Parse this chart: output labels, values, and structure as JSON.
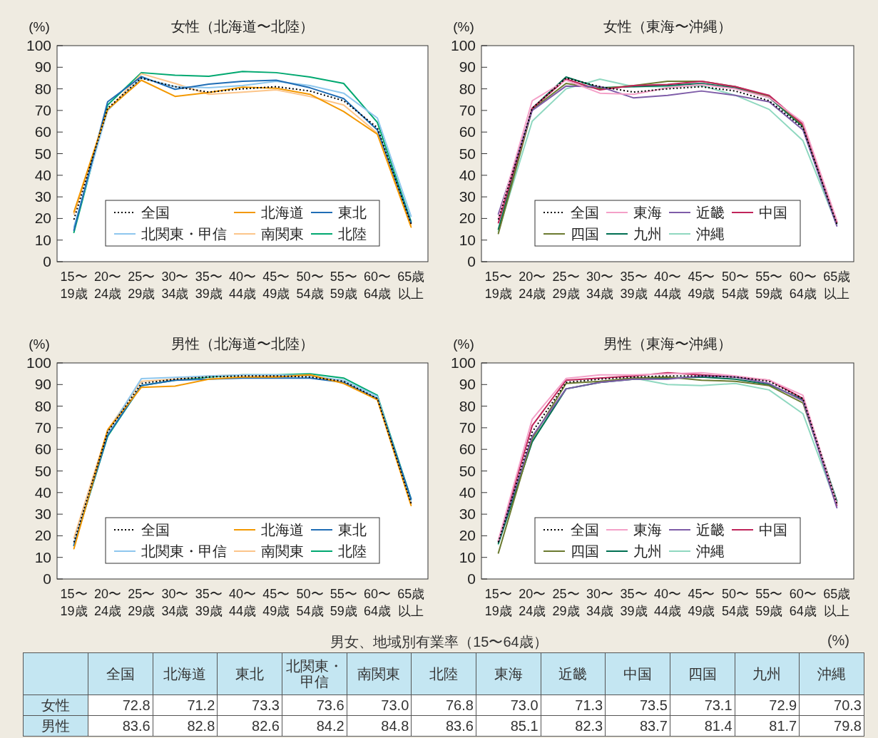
{
  "chart_data": [
    {
      "type": "line",
      "title": "女性（北海道〜北陸）",
      "ylabel": "(%)",
      "categories": [
        "15〜19歳",
        "20〜24歳",
        "25〜29歳",
        "30〜34歳",
        "35〜39歳",
        "40〜44歳",
        "45〜49歳",
        "50〜54歳",
        "55〜59歳",
        "60〜64歳",
        "65歳以上"
      ],
      "ylim": [
        0,
        100
      ],
      "yticks": [
        0,
        10,
        20,
        30,
        40,
        50,
        60,
        70,
        80,
        90,
        100
      ],
      "grid": false,
      "legend": "bottom",
      "series": [
        {
          "name": "全国",
          "color": "#000000",
          "line_style": "dotted",
          "values": [
            19.5,
            71,
            85,
            81,
            78.5,
            80,
            81,
            79,
            74.5,
            62,
            17.5
          ]
        },
        {
          "name": "北海道",
          "color": "#f39800",
          "values": [
            23,
            70.5,
            84,
            76.5,
            78.3,
            80.8,
            80.3,
            77.5,
            69.5,
            59,
            16
          ]
        },
        {
          "name": "東北",
          "color": "#1f6db5",
          "values": [
            14.5,
            74,
            85.7,
            79.8,
            82.2,
            83.5,
            84,
            80.5,
            75.5,
            61,
            18
          ]
        },
        {
          "name": "北関東・甲信",
          "color": "#8ec7ee",
          "values": [
            16,
            70,
            85,
            81,
            80.5,
            81.5,
            83.5,
            81.5,
            78,
            66.5,
            21
          ]
        },
        {
          "name": "南関東",
          "color": "#fcc58a",
          "values": [
            22,
            70,
            87,
            82.5,
            77.5,
            78.5,
            79.5,
            76.5,
            72.5,
            59.5,
            17
          ]
        },
        {
          "name": "北陸",
          "color": "#00a870",
          "values": [
            13.5,
            72.5,
            87.5,
            86.3,
            85.8,
            88,
            87.5,
            85.5,
            82.5,
            64.5,
            18.5
          ]
        }
      ]
    },
    {
      "type": "line",
      "title": "女性（東海〜沖縄）",
      "ylabel": "(%)",
      "categories": [
        "15〜19歳",
        "20〜24歳",
        "25〜29歳",
        "30〜34歳",
        "35〜39歳",
        "40〜44歳",
        "45〜49歳",
        "50〜54歳",
        "55〜59歳",
        "60〜64歳",
        "65歳以上"
      ],
      "ylim": [
        0,
        100
      ],
      "yticks": [
        0,
        10,
        20,
        30,
        40,
        50,
        60,
        70,
        80,
        90,
        100
      ],
      "grid": false,
      "legend": "bottom",
      "series": [
        {
          "name": "全国",
          "color": "#000000",
          "line_style": "dotted",
          "values": [
            19.5,
            71,
            85,
            81,
            78.5,
            80,
            81,
            79,
            74.5,
            62,
            17.5
          ]
        },
        {
          "name": "東海",
          "color": "#f4a0c8",
          "values": [
            20,
            74.5,
            84,
            78,
            77.5,
            80.5,
            82,
            80,
            76,
            64.5,
            19
          ]
        },
        {
          "name": "近畿",
          "color": "#7e5ca8",
          "values": [
            22,
            70,
            81.3,
            81,
            75.8,
            77,
            79,
            77,
            74,
            61,
            16.5
          ]
        },
        {
          "name": "中国",
          "color": "#c0245a",
          "values": [
            18,
            71,
            84.5,
            79.5,
            81.5,
            82,
            83.5,
            81,
            77,
            63.5,
            18.5
          ]
        },
        {
          "name": "四国",
          "color": "#6b7a30",
          "values": [
            13,
            70.5,
            82.5,
            80,
            81.5,
            83.5,
            83.5,
            81,
            76.5,
            63,
            18
          ]
        },
        {
          "name": "九州",
          "color": "#006f52",
          "values": [
            15,
            71,
            85.5,
            80.5,
            81,
            81.5,
            82.5,
            80.5,
            76,
            62.5,
            18
          ]
        },
        {
          "name": "沖縄",
          "color": "#8fd8c0",
          "values": [
            14,
            65,
            80,
            84.5,
            81,
            81,
            81.5,
            77,
            70.5,
            56,
            17
          ]
        }
      ]
    },
    {
      "type": "line",
      "title": "男性（北海道〜北陸）",
      "ylabel": "(%)",
      "categories": [
        "15〜19歳",
        "20〜24歳",
        "25〜29歳",
        "30〜34歳",
        "35〜39歳",
        "40〜44歳",
        "45〜49歳",
        "50〜54歳",
        "55〜59歳",
        "60〜64歳",
        "65歳以上"
      ],
      "ylim": [
        0,
        100
      ],
      "yticks": [
        0,
        10,
        20,
        30,
        40,
        50,
        60,
        70,
        80,
        90,
        100
      ],
      "grid": false,
      "legend": "bottom",
      "series": [
        {
          "name": "全国",
          "color": "#000000",
          "line_style": "dotted",
          "values": [
            17,
            68,
            90.5,
            92.5,
            93.5,
            94,
            94,
            93.5,
            91.5,
            83.5,
            35
          ]
        },
        {
          "name": "北海道",
          "color": "#f39800",
          "values": [
            14,
            69,
            88.7,
            89.3,
            92.5,
            93.5,
            93.5,
            94.5,
            90.5,
            83,
            34
          ]
        },
        {
          "name": "東北",
          "color": "#1f6db5",
          "values": [
            15.5,
            66.5,
            89.5,
            92,
            92.5,
            93,
            93,
            93,
            91,
            83.5,
            37
          ]
        },
        {
          "name": "北関東・甲信",
          "color": "#8ec7ee",
          "values": [
            16,
            68,
            92.7,
            93.3,
            94,
            94.5,
            94.5,
            94,
            92,
            84.5,
            36
          ]
        },
        {
          "name": "南関東",
          "color": "#fcc58a",
          "values": [
            19,
            69,
            91.5,
            92.5,
            94,
            94.5,
            94,
            94.5,
            91,
            83,
            35
          ]
        },
        {
          "name": "北陸",
          "color": "#00a870",
          "values": [
            15.5,
            66,
            89.5,
            92,
            93.5,
            94.5,
            94.5,
            95,
            93,
            85,
            37
          ]
        }
      ]
    },
    {
      "type": "line",
      "title": "男性（東海〜沖縄）",
      "ylabel": "(%)",
      "categories": [
        "15〜19歳",
        "20〜24歳",
        "25〜29歳",
        "30〜34歳",
        "35〜39歳",
        "40〜44歳",
        "45〜49歳",
        "50〜54歳",
        "55〜59歳",
        "60〜64歳",
        "65歳以上"
      ],
      "ylim": [
        0,
        100
      ],
      "yticks": [
        0,
        10,
        20,
        30,
        40,
        50,
        60,
        70,
        80,
        90,
        100
      ],
      "grid": false,
      "legend": "bottom",
      "series": [
        {
          "name": "全国",
          "color": "#000000",
          "line_style": "dotted",
          "values": [
            17,
            68,
            91,
            92.5,
            93.5,
            94,
            94,
            93.5,
            91.5,
            83.5,
            35
          ]
        },
        {
          "name": "東海",
          "color": "#f4a0c8",
          "values": [
            18,
            74,
            92.8,
            94.5,
            94.5,
            95,
            95.5,
            94,
            92,
            85,
            35
          ]
        },
        {
          "name": "近畿",
          "color": "#7e5ca8",
          "values": [
            17.5,
            66,
            88,
            91,
            92.5,
            92.5,
            94,
            93.5,
            90.5,
            82.5,
            33
          ]
        },
        {
          "name": "中国",
          "color": "#c0245a",
          "values": [
            17.5,
            71,
            92,
            93,
            94,
            95.5,
            94.5,
            93.5,
            92,
            83.5,
            34
          ]
        },
        {
          "name": "四国",
          "color": "#6b7a30",
          "values": [
            12,
            65,
            90.5,
            91.5,
            93,
            93.5,
            92,
            91.5,
            89.5,
            81.5,
            35
          ]
        },
        {
          "name": "九州",
          "color": "#006f52",
          "values": [
            16.5,
            63.5,
            88,
            91,
            92.5,
            93,
            93.5,
            92.5,
            90,
            83,
            36
          ]
        },
        {
          "name": "沖縄",
          "color": "#8fd8c0",
          "values": [
            16,
            64,
            88,
            91,
            93,
            90,
            89.5,
            90.5,
            87.5,
            76.5,
            34
          ]
        }
      ]
    },
    {
      "type": "other",
      "title": "男女、地域別有業率（15〜64歳）",
      "annotations": [
        "(%)"
      ],
      "categories": [
        "全国",
        "北海道",
        "東北",
        "北関東・甲信",
        "南関東",
        "北陸",
        "東海",
        "近畿",
        "中国",
        "四国",
        "九州",
        "沖縄"
      ],
      "y_categories": [
        "女性",
        "男性"
      ],
      "cells": [
        [
          "72.8",
          "71.2",
          "73.3",
          "73.6",
          "73.0",
          "76.8",
          "73.0",
          "71.3",
          "73.5",
          "73.1",
          "72.9",
          "70.3"
        ],
        [
          "83.6",
          "82.8",
          "82.6",
          "84.2",
          "84.8",
          "83.6",
          "85.1",
          "82.3",
          "83.7",
          "81.4",
          "81.7",
          "79.8"
        ]
      ]
    }
  ]
}
